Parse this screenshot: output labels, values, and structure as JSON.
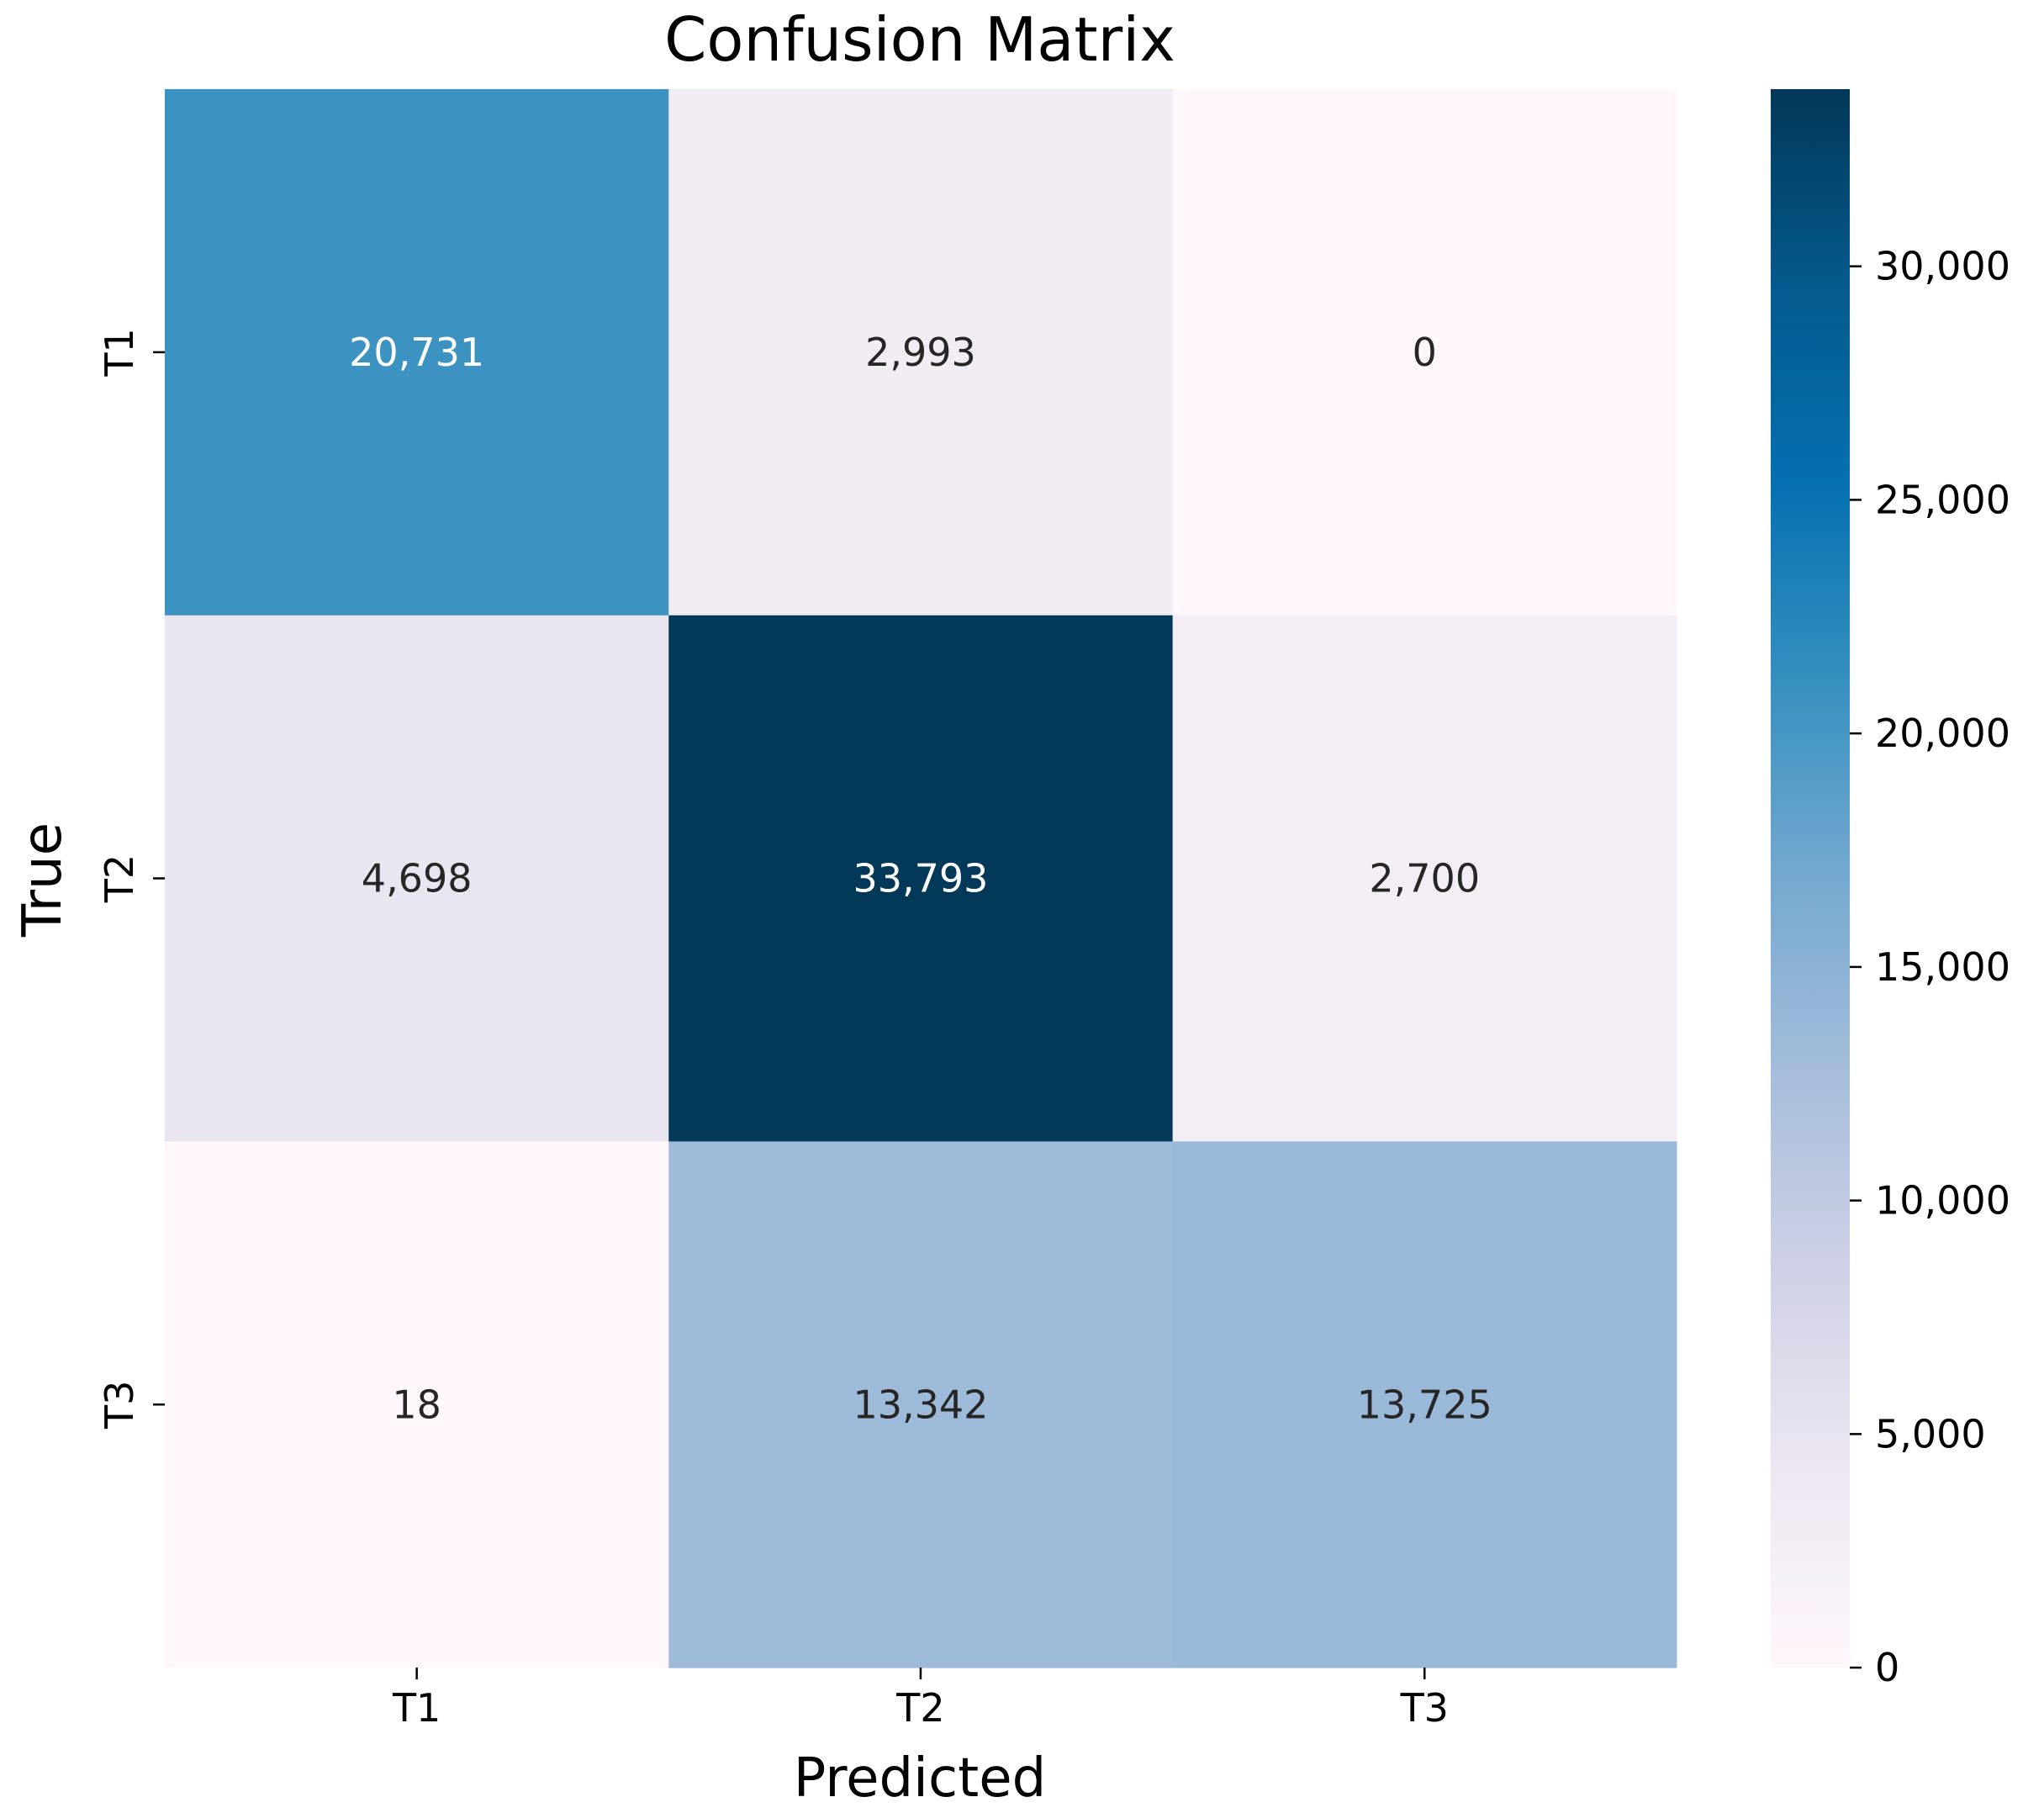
{
  "chart_data": {
    "type": "heatmap",
    "title": "Confusion Matrix",
    "xlabel": "Predicted",
    "ylabel": "True",
    "x_categories": [
      "T1",
      "T2",
      "T3"
    ],
    "y_categories": [
      "T1",
      "T2",
      "T3"
    ],
    "matrix": [
      [
        20731,
        2993,
        0
      ],
      [
        4698,
        33793,
        2700
      ],
      [
        18,
        13342,
        13725
      ]
    ],
    "cell_labels": [
      [
        "20,731",
        "2,993",
        "0"
      ],
      [
        "4,698",
        "33,793",
        "2,700"
      ],
      [
        "18",
        "13,342",
        "13,725"
      ]
    ],
    "colorbar": {
      "vmin": 0,
      "vmax": 33793,
      "ticks": [
        0,
        5000,
        10000,
        15000,
        20000,
        25000,
        30000
      ],
      "tick_labels": [
        "0",
        "5,000",
        "10,000",
        "15,000",
        "20,000",
        "25,000",
        "30,000"
      ]
    },
    "colormap_stops": [
      "#fff7fb",
      "#ece7f2",
      "#d0d1e6",
      "#a6bddb",
      "#74a9cf",
      "#3690c0",
      "#0570b0",
      "#045a8d",
      "#023858"
    ]
  }
}
